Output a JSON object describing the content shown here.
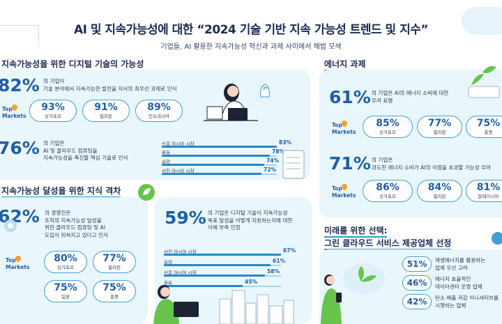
{
  "header": {
    "title": "AI 및 지속가능성에 대한 “2024 기술 기반 지속 가능성 트렌드 및 지수”",
    "subtitle": "기업들, AI 활용한 지속가능성 혁신과 과제 사이에서 해법 모색"
  },
  "top_markets_label": [
    "Top",
    "Markets"
  ],
  "digital": {
    "title": "지속가능성을 위한 디지털 기술의 가능성",
    "stat1": {
      "value": "82%",
      "text": [
        "의 기업이",
        "기술 분야에서 지속가능한 발전을 자사의 최우선 과제로 인식"
      ]
    },
    "markets1": [
      {
        "value": "93%",
        "label": "싱가포르"
      },
      {
        "value": "91%",
        "label": "필리핀"
      },
      {
        "value": "89%",
        "label": "인도네시아"
      }
    ],
    "stat2": {
      "value": "76%",
      "text": [
        "의 기업은",
        "AI 및 클라우드 컴퓨팅을",
        "지속가능성을 촉진할 핵심 기술로 인식"
      ]
    },
    "regions": [
      {
        "label": "신흥 아시아 시장",
        "value": "83%",
        "fraction": 0.83
      },
      {
        "label": "중동",
        "value": "78%",
        "fraction": 0.78
      },
      {
        "label": "유럽",
        "value": "74%",
        "fraction": 0.74
      },
      {
        "label": "선진 아시아 시장",
        "value": "72%",
        "fraction": 0.72
      }
    ]
  },
  "gap": {
    "title": "지속가능성 달성을 위한 지식 격차",
    "stat1": {
      "value": "62%",
      "text": [
        "의 경영진은",
        "조직의 지속가능성 달성을",
        "위한 클라우드 컴퓨팅 및 AI",
        "도입이 뒤쳐지고 있다고 인식"
      ]
    },
    "markets": [
      {
        "value": "80%",
        "label": "싱가포르"
      },
      {
        "value": "77%",
        "label": "필리핀"
      },
      {
        "value": "75%",
        "label": "일본"
      },
      {
        "value": "75%",
        "label": "홍콩"
      }
    ],
    "stat2": {
      "value": "59%",
      "text": [
        "의 기업은 디지털 기술이 지속가능성",
        "목표 달성을 어떻게 지원하는지에 대한",
        "이해 부족 인정"
      ]
    },
    "regions": [
      {
        "label": "선진 아시아 시장",
        "value": "67%",
        "fraction": 0.67
      },
      {
        "label": "유럽",
        "value": "61%",
        "fraction": 0.61
      },
      {
        "label": "신흥 아시아 시장",
        "value": "58%",
        "fraction": 0.58
      },
      {
        "label": "중동",
        "value": "45%",
        "fraction": 0.45
      }
    ]
  },
  "energy": {
    "title": "에너지 과제",
    "stat1": {
      "value": "61%",
      "text": [
        "의 기업은 AI의 에너지 소비에 대한",
        "우려 표명"
      ]
    },
    "markets1": [
      {
        "value": "85%",
        "label": "싱가포르"
      },
      {
        "value": "77%",
        "label": "필리핀"
      },
      {
        "value": "75%",
        "label": "홍콩"
      }
    ],
    "stat2": {
      "value": "71%",
      "text": [
        "의 기업은",
        "과도한 에너지 소비가 AI의 이점을 초과할 가능성 우려"
      ]
    },
    "markets2": [
      {
        "value": "86%",
        "label": "싱가포르"
      },
      {
        "value": "84%",
        "label": "필리핀"
      },
      {
        "value": "81%",
        "label": "말레이시아"
      }
    ]
  },
  "future": {
    "title": [
      "미래를 위한 선택:",
      "그린 클라우드 서비스 제공업체 선정"
    ],
    "items": [
      {
        "value": "51%",
        "text": [
          "재생에너지를 활용하는",
          "업체 우선 고려"
        ]
      },
      {
        "value": "46%",
        "text": [
          "에너지 효율적인",
          "데이터센터 운영 업체"
        ]
      },
      {
        "value": "42%",
        "text": [
          "탄소 배출 저감 이니셔티브를",
          "시행하는 업체"
        ]
      }
    ]
  },
  "colors": {
    "accent": "#1e5faa",
    "panel": "#e9f6fb",
    "pill_border": "#3da0d3",
    "title": "#1b2a55",
    "bar": "#2a86c6"
  },
  "icons": [
    "cloud-icon",
    "location-pin-icon",
    "leaf-icon",
    "laptop-icon",
    "lightbulb-icon",
    "battery-icon",
    "city-buildings-icon"
  ]
}
